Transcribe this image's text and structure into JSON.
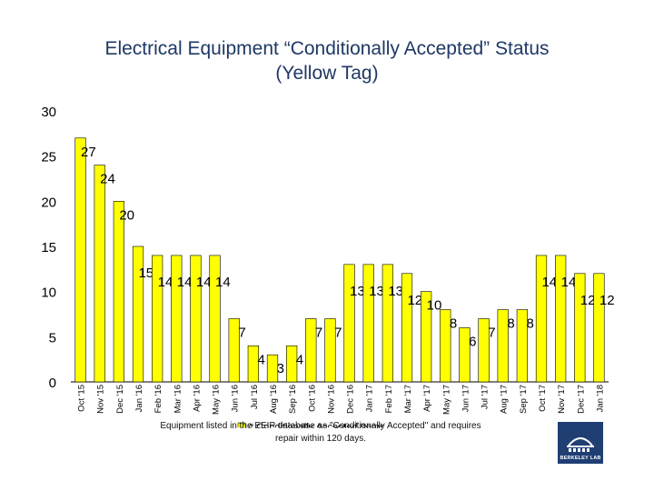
{
  "title_line1": "Electrical Equipment “Conditionally Accepted” Status",
  "title_line2": "(Yellow Tag)",
  "footnote_line1": "Equipment listed in the EEIP database as \"Conditionally Accepted\" and requires",
  "footnote_line2": "repair within 120 days.",
  "logo_text": "BERKELEY LAB",
  "colors": {
    "bar_fill": "#ffff00",
    "bar_stroke": "#000000",
    "title": "#1f3864",
    "logo_bg": "#1f3f73"
  },
  "chart_data": {
    "type": "bar",
    "categories": [
      "Oct '15",
      "Nov '15",
      "Dec '15",
      "Jan '16",
      "Feb '16",
      "Mar '16",
      "Apr '16",
      "May '16",
      "Jun '16",
      "Jul '16",
      "Aug '16",
      "Sep '16",
      "Oct '16",
      "Nov '16",
      "Dec '16",
      "Jan '17",
      "Feb '17",
      "Mar '17",
      "Apr '17",
      "May '17",
      "Jun '17",
      "Jul '17",
      "Aug '17",
      "Sep '17",
      "Oct '17",
      "Nov '17",
      "Dec '17",
      "Jan '18"
    ],
    "series": [
      {
        "name": "# Conditionally Accepted Items",
        "values": [
          27,
          24,
          20,
          15,
          14,
          14,
          14,
          14,
          7,
          4,
          3,
          4,
          7,
          7,
          13,
          13,
          13,
          12,
          10,
          8,
          6,
          7,
          8,
          8,
          14,
          14,
          12,
          12
        ]
      }
    ],
    "yticks": [
      0,
      5,
      10,
      15,
      20,
      25,
      30
    ],
    "ylim": [
      0,
      30
    ],
    "legend_position": "bottom",
    "title": "Electrical Equipment “Conditionally Accepted” Status (Yellow Tag)"
  }
}
